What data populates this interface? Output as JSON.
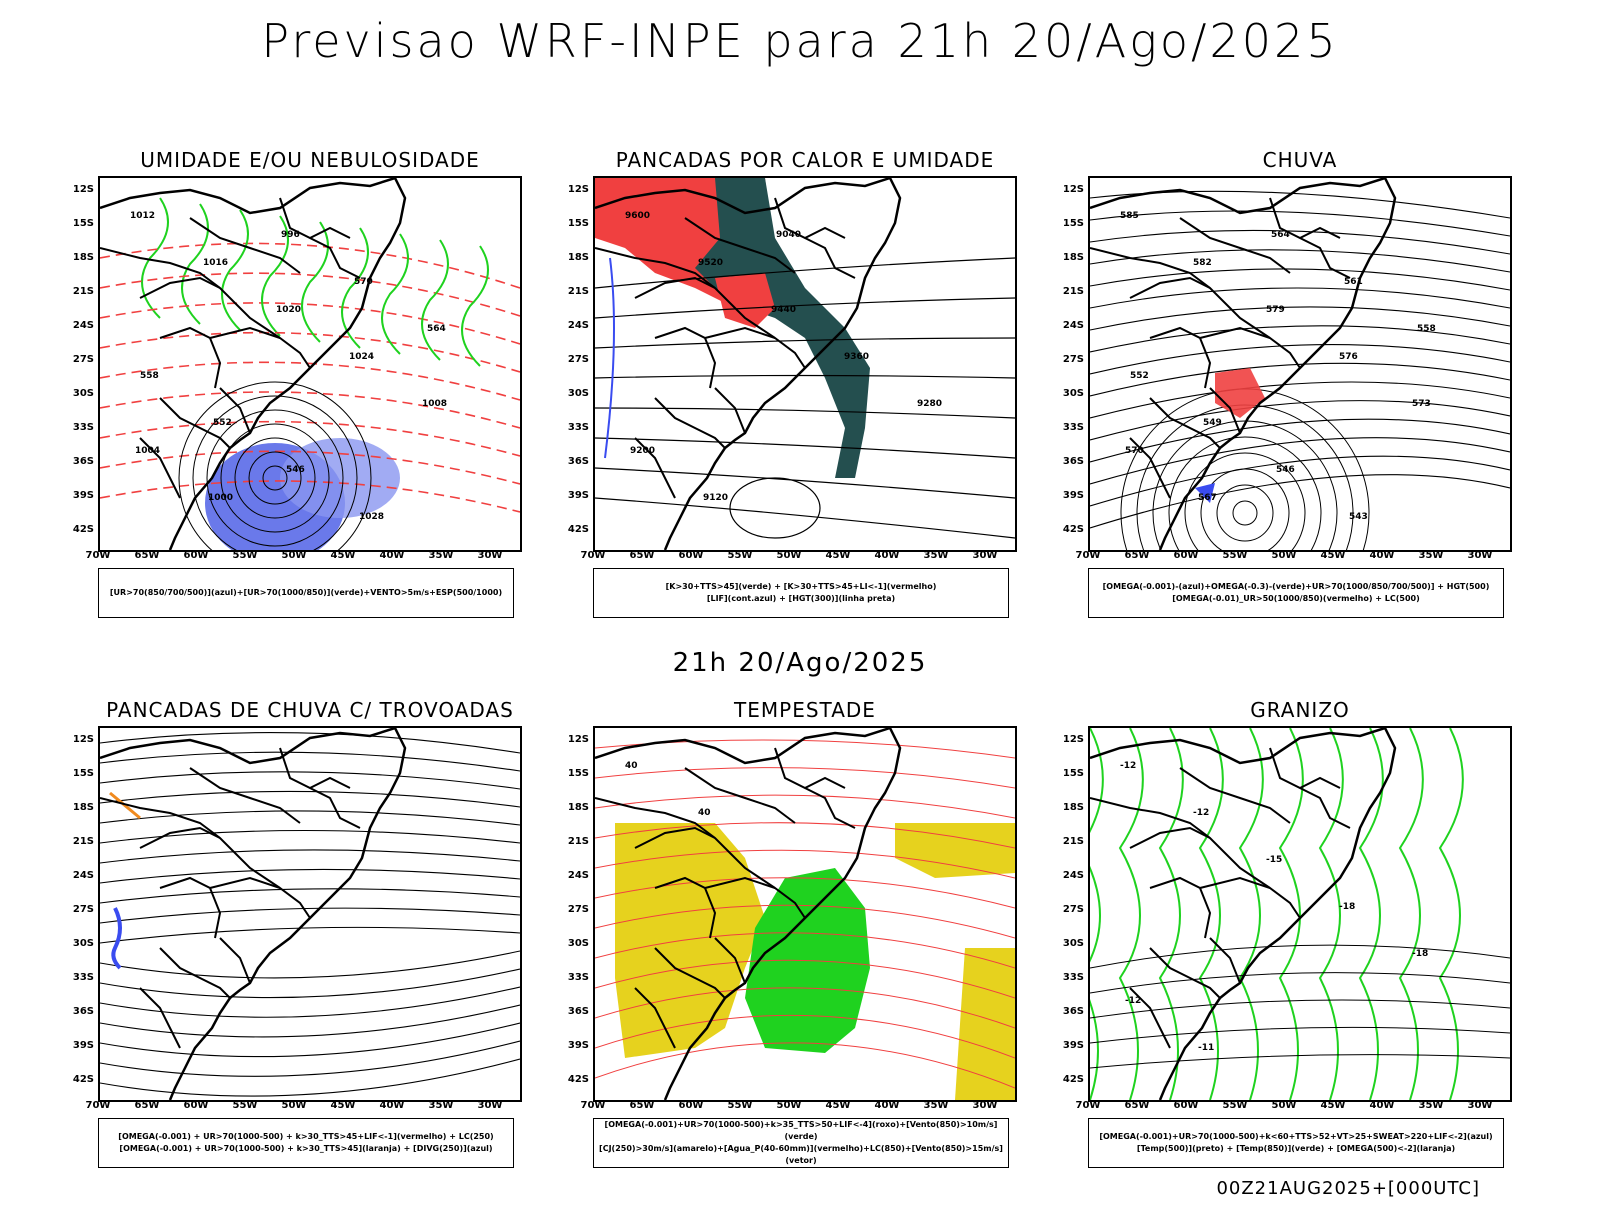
{
  "header": {
    "title": "Previsao WRF-INPE  para 21h 20/Ago/2025"
  },
  "mid_title": "21h 20/Ago/2025",
  "footer": "00Z21AUG2025+[000UTC]",
  "axes": {
    "lat_labels": [
      "12S",
      "15S",
      "18S",
      "21S",
      "24S",
      "27S",
      "30S",
      "33S",
      "36S",
      "39S",
      "42S"
    ],
    "lon_labels": [
      "70W",
      "65W",
      "60W",
      "55W",
      "50W",
      "45W",
      "40W",
      "35W",
      "30W"
    ]
  },
  "colors": {
    "blue": "#3a4cf0",
    "green": "#1fd21f",
    "red": "#f04040",
    "darkteal": "#244f4f",
    "yellow": "#e6d21e",
    "orange": "#f08a1e"
  },
  "panels": [
    {
      "title": "UMIDADE E/OU NEBULOSIDADE",
      "legend": [
        "[UR>70(850/700/500)](azul)+[UR>70(1000/850)](verde)+VENTO>5m/s+ESP(500/1000)"
      ],
      "labels": [
        "1012",
        "1016",
        "1020",
        "1024",
        "1008",
        "1004",
        "1000",
        "996",
        "570",
        "564",
        "558",
        "552",
        "546",
        "1028"
      ]
    },
    {
      "title": "PANCADAS POR CALOR E UMIDADE",
      "legend": [
        "[K>30+TTS>45](verde) + [K>30+TTS>45+LI<-1](vermelho)",
        "[LIF](cont.azul) + [HGT(300)](linha preta)"
      ],
      "labels": [
        "9600",
        "9520",
        "9440",
        "9360",
        "9280",
        "9200",
        "9120",
        "9040"
      ]
    },
    {
      "title": "CHUVA",
      "legend": [
        "[OMEGA(-0.001)-(azul)+OMEGA(-0.3)-(verde)+UR>70(1000/850/700/500)] + HGT(500)",
        "[OMEGA(-0.01)_UR>50(1000/850)(vermelho) + LC(500)"
      ],
      "labels": [
        "585",
        "582",
        "579",
        "576",
        "573",
        "570",
        "567",
        "564",
        "561",
        "558",
        "552",
        "549",
        "546",
        "543"
      ]
    },
    {
      "title": "PANCADAS DE CHUVA C/ TROVOADAS",
      "legend": [
        "[OMEGA(-0.001) + UR>70(1000-500) + k>30_TTS>45+LIF<-1](vermelho) + LC(250)",
        "[OMEGA(-0.001) + UR>70(1000-500) + k>30_TTS>45](laranja) + [DIVG(250)](azul)"
      ],
      "labels": []
    },
    {
      "title": "TEMPESTADE",
      "legend": [
        "[OMEGA(-0.001)+UR>70(1000-500)+k>35_TTS>50+LIF<-4](roxo)+[Vento(850)>10m/s](verde)",
        "[CJ(250)>30m/s](amarelo)+[Agua_P(40-60mm)](vermelho)+LC(850)+[Vento(850)>15m/s](vetor)"
      ],
      "labels": [
        "40",
        "40"
      ]
    },
    {
      "title": "GRANIZO",
      "legend": [
        "[OMEGA(-0.001)+UR>70(1000-500)+k<60+TTS>52+VT>25+SWEAT>220+LIF<-2](azul)",
        "[Temp(500)](preto) + [Temp(850)](verde) + [OMEGA(500)<-2](laranja)"
      ],
      "labels": [
        "-12",
        "-12",
        "-15",
        "-18",
        "-18",
        "-12",
        "-11"
      ]
    }
  ]
}
